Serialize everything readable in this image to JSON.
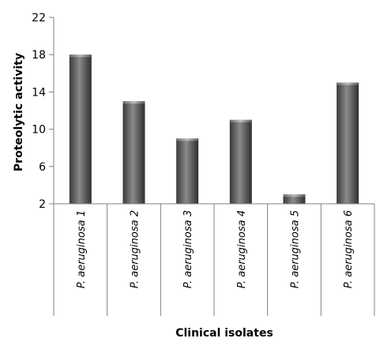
{
  "chart_data": {
    "type": "bar",
    "title": "",
    "xlabel": "Clinical isolates",
    "ylabel": "Proteolytic activity",
    "categories": [
      "P. aeruginosa 1",
      "P. aeruginosa 2",
      "P. aeruginosa 3",
      "P. aeruginosa 4",
      "P. aeruginosa 5",
      "P. aeruginosa 6"
    ],
    "values": [
      18,
      13,
      9,
      11,
      3,
      15
    ],
    "ylim": [
      2,
      22
    ],
    "yticks": [
      2,
      6,
      10,
      14,
      18,
      22
    ],
    "grid": false,
    "legend": "none",
    "colors": {
      "bar_dark": "#3a3a3a",
      "bar_light": "#8a8a8a",
      "axis": "#808080"
    }
  }
}
